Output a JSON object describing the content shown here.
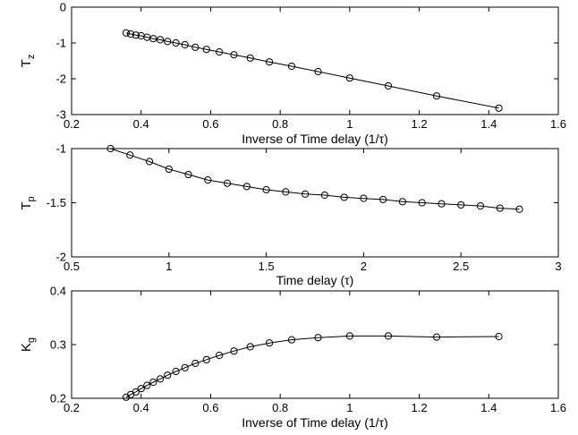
{
  "chart_data": [
    {
      "type": "line",
      "ylabel": {
        "main": "T",
        "sub": "z"
      },
      "xlabel": "Inverse of Time delay (1/τ)",
      "xlim": [
        0.2,
        1.6
      ],
      "ylim": [
        -3,
        0
      ],
      "x_ticks": [
        "0.2",
        "0.4",
        "0.6",
        "0.8",
        "1",
        "1.2",
        "1.4",
        "1.6"
      ],
      "y_ticks": [
        "-3",
        "-2",
        "-1",
        "0"
      ],
      "grid": false,
      "series": [
        {
          "marker": "circle",
          "x": [
            0.357,
            0.37,
            0.385,
            0.4,
            0.417,
            0.435,
            0.455,
            0.476,
            0.5,
            0.526,
            0.556,
            0.588,
            0.625,
            0.667,
            0.714,
            0.769,
            0.833,
            0.909,
            1.0,
            1.111,
            1.25,
            1.429
          ],
          "y": [
            -0.72,
            -0.75,
            -0.78,
            -0.8,
            -0.84,
            -0.88,
            -0.91,
            -0.96,
            -1.0,
            -1.05,
            -1.12,
            -1.18,
            -1.25,
            -1.33,
            -1.42,
            -1.53,
            -1.65,
            -1.8,
            -1.98,
            -2.2,
            -2.48,
            -2.82
          ]
        }
      ]
    },
    {
      "type": "line",
      "ylabel": {
        "main": "T",
        "sub": "p"
      },
      "xlabel": "Time delay (τ)",
      "xlim": [
        0.5,
        3
      ],
      "ylim": [
        -2,
        -1
      ],
      "x_ticks": [
        "0.5",
        "1",
        "1.5",
        "2",
        "2.5",
        "3"
      ],
      "y_ticks": [
        "-2",
        "-1.5",
        "-1"
      ],
      "grid": false,
      "series": [
        {
          "marker": "circle",
          "x": [
            0.7,
            0.8,
            0.9,
            1.0,
            1.1,
            1.2,
            1.3,
            1.4,
            1.5,
            1.6,
            1.7,
            1.8,
            1.9,
            2.0,
            2.1,
            2.2,
            2.3,
            2.4,
            2.5,
            2.6,
            2.7,
            2.8
          ],
          "y": [
            -1.0,
            -1.06,
            -1.12,
            -1.19,
            -1.24,
            -1.29,
            -1.32,
            -1.35,
            -1.38,
            -1.4,
            -1.42,
            -1.43,
            -1.45,
            -1.46,
            -1.47,
            -1.49,
            -1.5,
            -1.51,
            -1.52,
            -1.53,
            -1.55,
            -1.56
          ]
        }
      ]
    },
    {
      "type": "line",
      "ylabel": {
        "main": "K",
        "sub": "g"
      },
      "xlabel": "Inverse of Time delay (1/τ)",
      "xlim": [
        0.2,
        1.6
      ],
      "ylim": [
        0.2,
        0.4
      ],
      "x_ticks": [
        "0.2",
        "0.4",
        "0.6",
        "0.8",
        "1",
        "1.2",
        "1.4",
        "1.6"
      ],
      "y_ticks": [
        "0.2",
        "0.3",
        "0.4"
      ],
      "grid": false,
      "series": [
        {
          "marker": "circle",
          "x": [
            0.357,
            0.37,
            0.385,
            0.4,
            0.417,
            0.435,
            0.455,
            0.476,
            0.5,
            0.526,
            0.556,
            0.588,
            0.625,
            0.667,
            0.714,
            0.769,
            0.833,
            0.909,
            1.0,
            1.111,
            1.25,
            1.429
          ],
          "y": [
            0.202,
            0.207,
            0.212,
            0.218,
            0.224,
            0.23,
            0.236,
            0.243,
            0.25,
            0.257,
            0.265,
            0.272,
            0.28,
            0.288,
            0.296,
            0.303,
            0.309,
            0.313,
            0.316,
            0.316,
            0.314,
            0.315
          ]
        }
      ]
    }
  ]
}
